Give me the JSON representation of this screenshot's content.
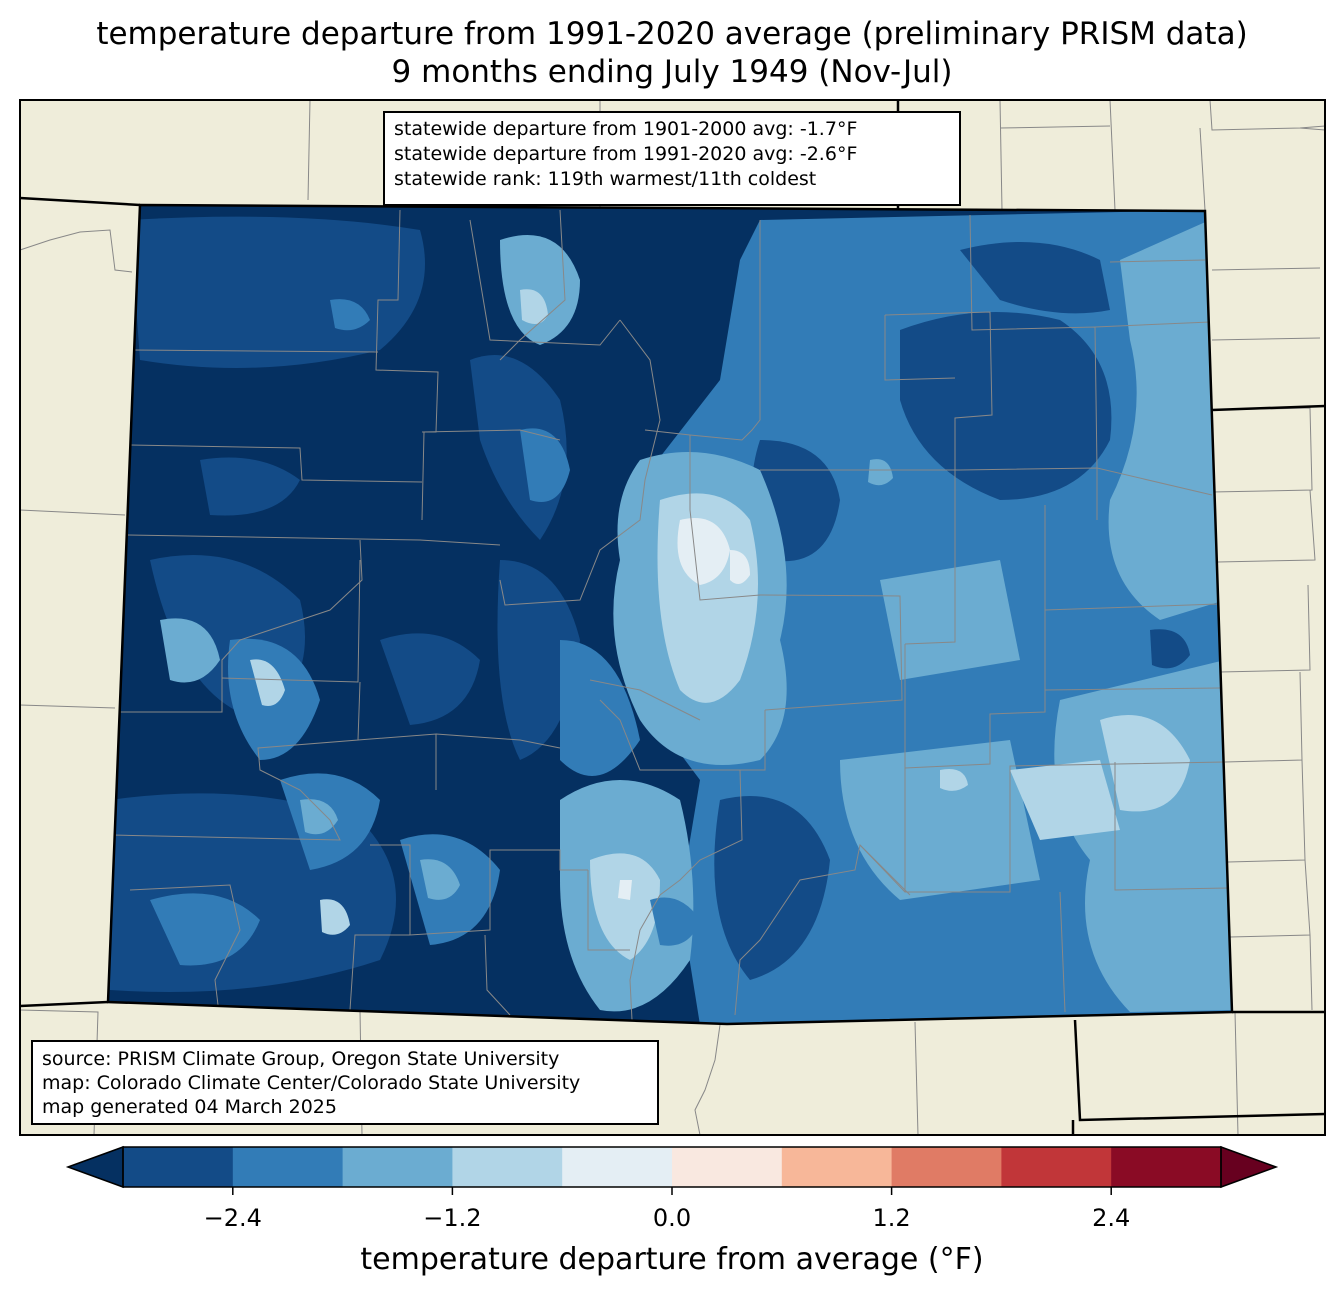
{
  "title": {
    "line1": "temperature departure from 1991-2020 average (preliminary PRISM data)",
    "line2": "9 months ending July 1949 (Nov-Jul)"
  },
  "stats": {
    "dep_1901_2000": "statewide departure from 1901-2000 avg: -1.7°F",
    "dep_1991_2020": "statewide departure from 1991-2020 avg: -2.6°F",
    "rank": "statewide rank: 119th warmest/11th coldest"
  },
  "credits": {
    "source": "source: PRISM Climate Group, Oregon State University",
    "map": "map: Colorado Climate Center/Colorado State University",
    "generated": "map generated 04 March 2025"
  },
  "colorbar": {
    "label": "temperature departure from average (°F)",
    "ticks": [
      {
        "label": "−2.4",
        "value": -2.4
      },
      {
        "label": "−1.2",
        "value": -1.2
      },
      {
        "label": "0.0",
        "value": 0.0
      },
      {
        "label": "1.2",
        "value": 1.2
      },
      {
        "label": "2.4",
        "value": 2.4
      }
    ],
    "min": -3.0,
    "max": 3.0,
    "bins": [
      {
        "from": -3.0,
        "to": -2.4,
        "color": "#134b87"
      },
      {
        "from": -2.4,
        "to": -1.8,
        "color": "#327cb7"
      },
      {
        "from": -1.8,
        "to": -1.2,
        "color": "#6bacd1"
      },
      {
        "from": -1.2,
        "to": -0.6,
        "color": "#b1d5e7"
      },
      {
        "from": -0.6,
        "to": 0.0,
        "color": "#e4eef4"
      },
      {
        "from": 0.0,
        "to": 0.6,
        "color": "#f9e8e0"
      },
      {
        "from": 0.6,
        "to": 1.2,
        "color": "#f7b799"
      },
      {
        "from": 1.2,
        "to": 1.8,
        "color": "#e07b65"
      },
      {
        "from": 1.8,
        "to": 2.4,
        "color": "#c13639"
      },
      {
        "from": 2.4,
        "to": 3.0,
        "color": "#8a0b25"
      }
    ],
    "under_color": "#053061",
    "over_color": "#67001f"
  },
  "colors": {
    "land": "#efedda",
    "darkest": "#053061",
    "dark": "#134b87",
    "mid": "#327cb7",
    "light": "#6bacd1",
    "pale": "#b1d5e7",
    "palest": "#e4eef4"
  }
}
